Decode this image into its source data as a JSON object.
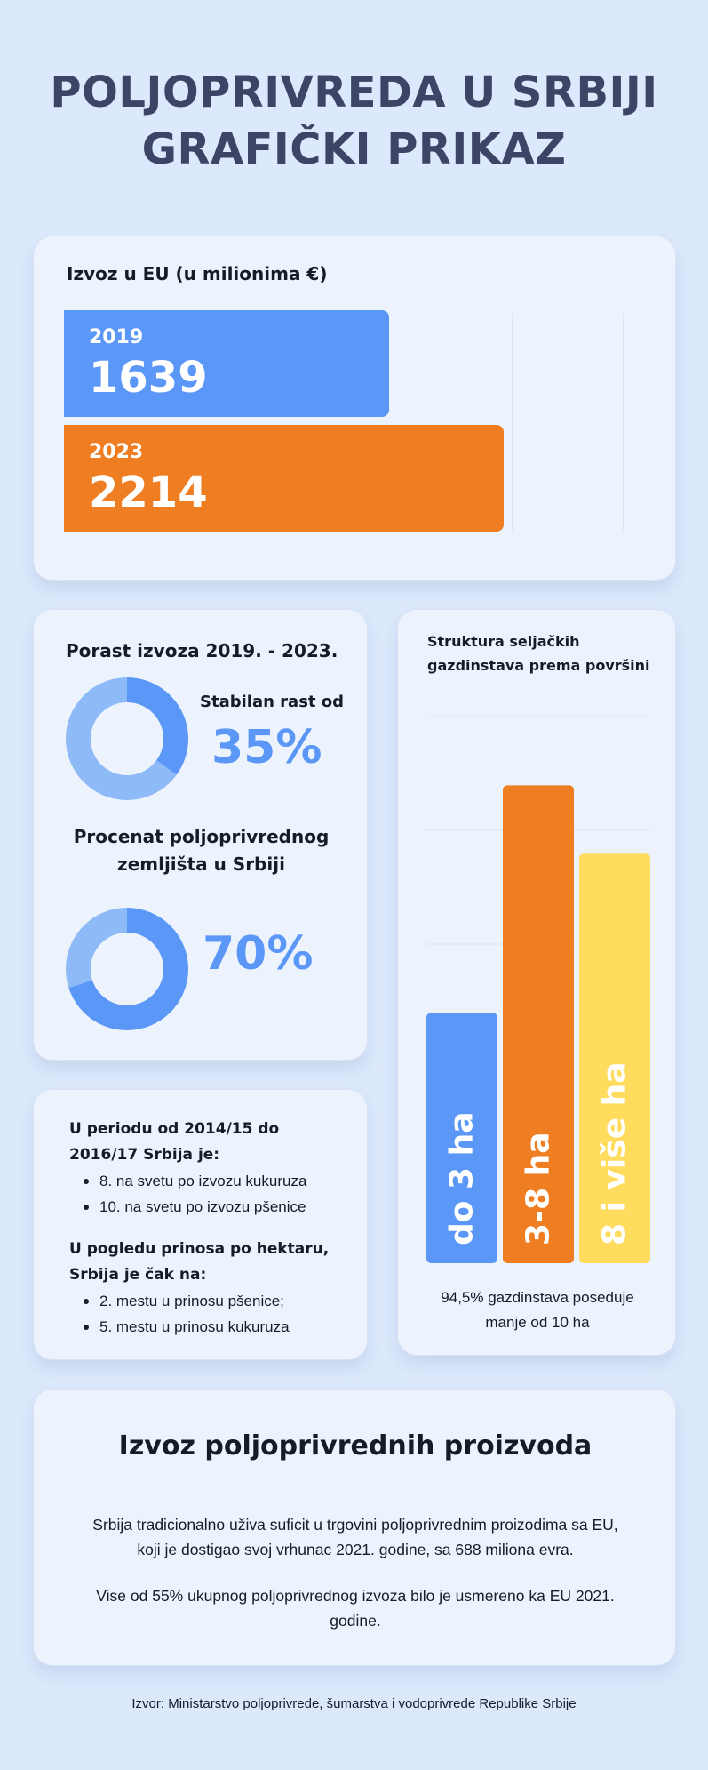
{
  "title": {
    "line1": "POLJOPRIVREDA U SRBIJI",
    "line2": "GRAFIČKI PRIKAZ"
  },
  "export_eu": {
    "title": "Izvoz u EU (u milionima €)"
  },
  "growth": {
    "title": "Porast izvoza 2019. - 2023.",
    "stable_label": "Stabilan rast od",
    "land_label_line1": "Procenat poljoprivrednog",
    "land_label_line2": "zemljišta u Srbiji"
  },
  "facts": {
    "head1_line1": "U periodu od 2014/15 do",
    "head1_line2": "2016/17  Srbija je:",
    "list1": [
      "8. na svetu po izvozu kukuruza",
      "10. na svetu po izvozu pšenice"
    ],
    "head2_line1": "U pogledu prinosa po hektaru,",
    "head2_line2": "Srbija je čak na:",
    "list2": [
      "2. mestu u prinosu pšenice;",
      "5. mestu u prinosu kukuruza"
    ]
  },
  "farms": {
    "title": "Struktura seljačkih gazdinstava prema površini",
    "note_line1": "94,5% gazdinstava poseduje",
    "note_line2": "manje od 10 ha"
  },
  "products": {
    "title": "Izvoz poljoprivrednih proizvoda",
    "p1_line1": "Srbija tradicionalno uživa suficit u trgovini poljoprivrednim proizodima sa EU,",
    "p1_line2": "koji je dostigao svoj vrhunac 2021. godine, sa 688 miliona evra.",
    "p2_line1": "Vise od 55% ukupnog poljoprivrednog izvoza bilo je usmereno ka EU 2021.",
    "p2_line2": "godine."
  },
  "source": "Izvor: Ministarstvo poljoprivrede, šumarstva i vodoprivrede Republike Srbije",
  "colors": {
    "blue": "#5b97f6",
    "light_blue": "#8fbaf8",
    "orange": "#ef7d22",
    "yellow": "#ffdb5e",
    "title": "#3d4466"
  },
  "chart_data": [
    {
      "type": "bar",
      "orientation": "horizontal",
      "title": "Izvoz u EU (u milionima €)",
      "categories": [
        "2019",
        "2023"
      ],
      "values": [
        1639,
        2214
      ],
      "colors": [
        "#5b97f6",
        "#ef7d22"
      ],
      "xlim": [
        0,
        2500
      ]
    },
    {
      "type": "pie",
      "title": "Porast izvoza 2019. - 2023.",
      "value_label": "35%",
      "fraction": 0.35,
      "colors": [
        "#5b97f6",
        "#8fbaf8"
      ]
    },
    {
      "type": "pie",
      "title": "Procenat poljoprivrednog zemljišta u Srbiji",
      "value_label": "70%",
      "fraction": 0.7,
      "colors": [
        "#5b97f6",
        "#8fbaf8"
      ]
    },
    {
      "type": "bar",
      "title": "Struktura seljačkih gazdinstava prema površini",
      "categories": [
        "do 3 ha",
        "3-8 ha",
        "8 i više ha"
      ],
      "values": [
        22,
        42,
        36
      ],
      "colors": [
        "#5b97f6",
        "#ef7d22",
        "#ffdb5e"
      ],
      "ylim": [
        0,
        50
      ],
      "grid": true
    }
  ]
}
